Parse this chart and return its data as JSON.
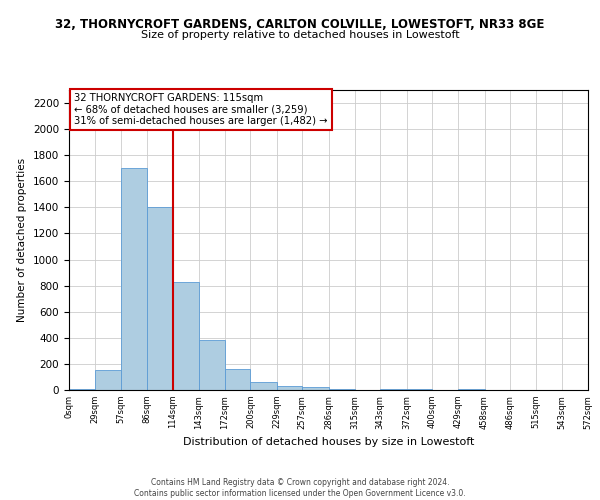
{
  "title_line1": "32, THORNYCROFT GARDENS, CARLTON COLVILLE, LOWESTOFT, NR33 8GE",
  "title_line2": "Size of property relative to detached houses in Lowestoft",
  "xlabel": "Distribution of detached houses by size in Lowestoft",
  "ylabel": "Number of detached properties",
  "bin_labels": [
    "0sqm",
    "29sqm",
    "57sqm",
    "86sqm",
    "114sqm",
    "143sqm",
    "172sqm",
    "200sqm",
    "229sqm",
    "257sqm",
    "286sqm",
    "315sqm",
    "343sqm",
    "372sqm",
    "400sqm",
    "429sqm",
    "458sqm",
    "486sqm",
    "515sqm",
    "543sqm",
    "572sqm"
  ],
  "bin_edges": [
    0,
    29,
    57,
    86,
    114,
    143,
    172,
    200,
    229,
    257,
    286,
    315,
    343,
    372,
    400,
    429,
    458,
    486,
    515,
    543,
    572
  ],
  "bar_heights": [
    10,
    155,
    1700,
    1400,
    830,
    380,
    160,
    65,
    30,
    20,
    5,
    0,
    5,
    5,
    0,
    5,
    0,
    0,
    0,
    0
  ],
  "bar_color": "#aecde1",
  "bar_edge_color": "#5b9bd5",
  "grid_color": "#cccccc",
  "ylim": [
    0,
    2300
  ],
  "yticks": [
    0,
    200,
    400,
    600,
    800,
    1000,
    1200,
    1400,
    1600,
    1800,
    2000,
    2200
  ],
  "xlim_max": 572,
  "property_value": 115,
  "red_line_color": "#cc0000",
  "annotation_text_line1": "32 THORNYCROFT GARDENS: 115sqm",
  "annotation_text_line2": "← 68% of detached houses are smaller (3,259)",
  "annotation_text_line3": "31% of semi-detached houses are larger (1,482) →",
  "annotation_box_color": "#ffffff",
  "annotation_box_edge": "#cc0000",
  "footer_line1": "Contains HM Land Registry data © Crown copyright and database right 2024.",
  "footer_line2": "Contains public sector information licensed under the Open Government Licence v3.0."
}
